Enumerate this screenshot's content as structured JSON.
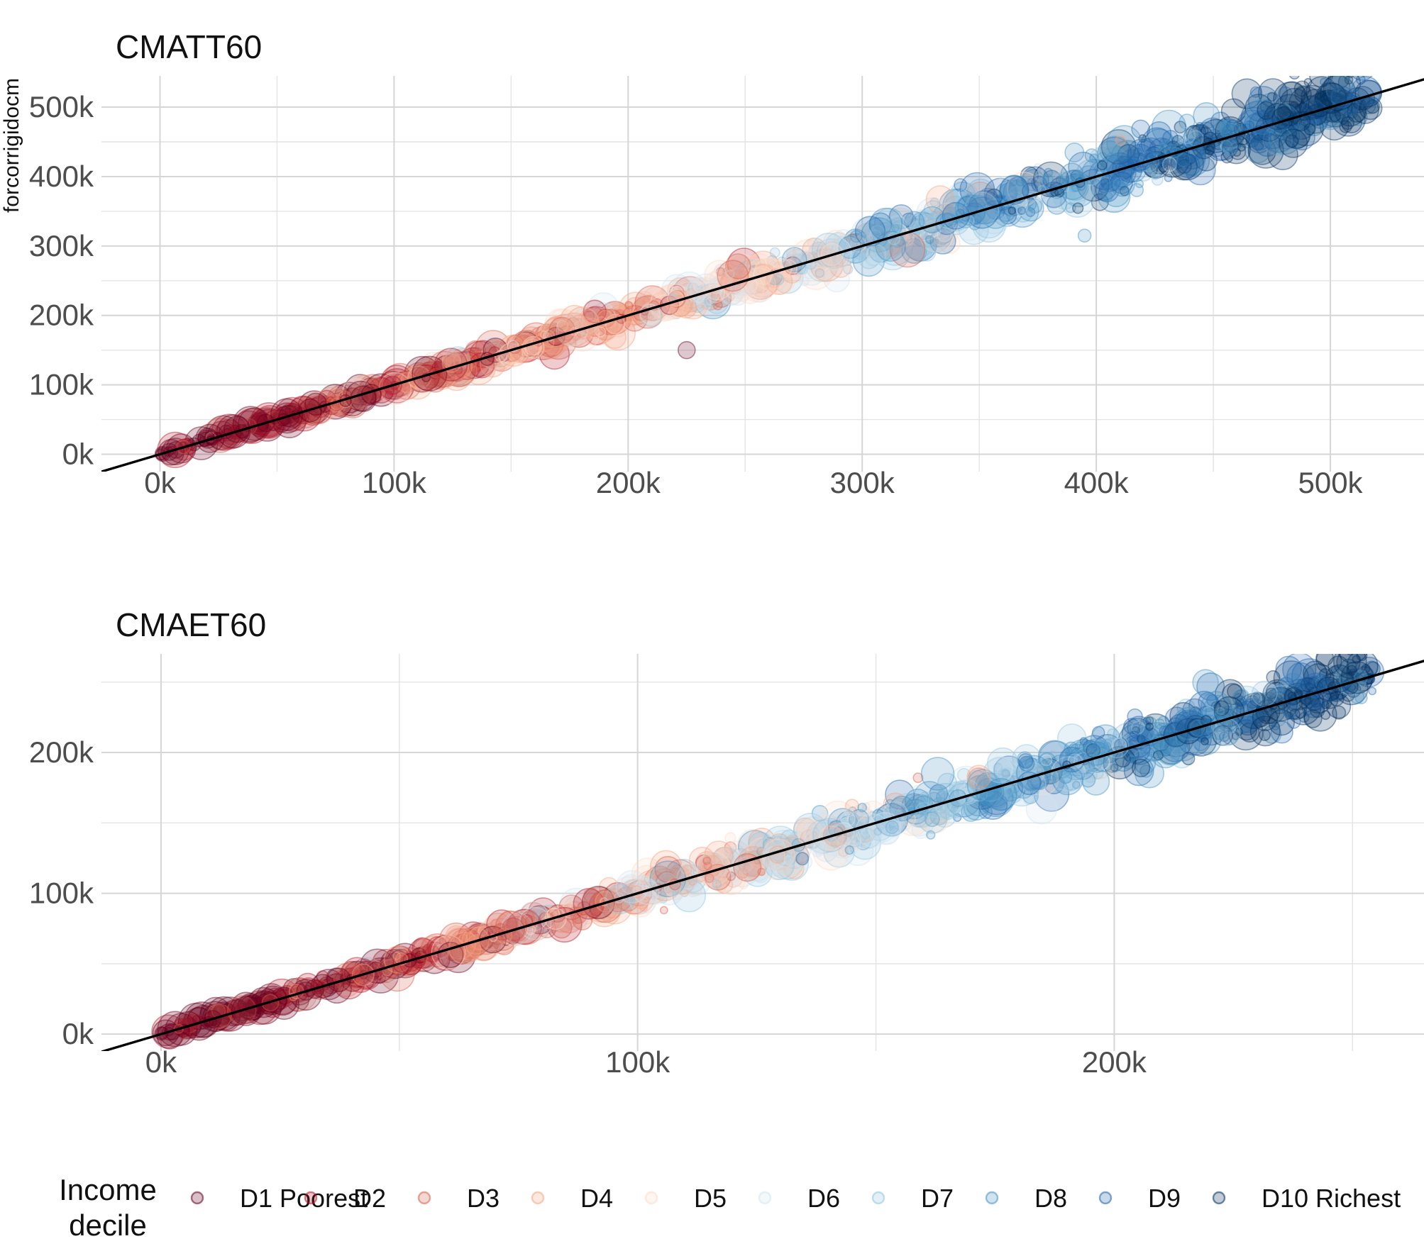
{
  "chart_data": [
    {
      "type": "scatter",
      "title": "CMATT60",
      "ylabel": "forcorrigidocm",
      "xlabel": "",
      "xlim": [
        -25000,
        540000
      ],
      "ylim": [
        -25000,
        545000
      ],
      "x_ticks": [
        0,
        100000,
        200000,
        300000,
        400000,
        500000
      ],
      "x_tick_labels": [
        "0k",
        "100k",
        "200k",
        "300k",
        "400k",
        "500k"
      ],
      "y_ticks": [
        0,
        100000,
        200000,
        300000,
        400000,
        500000
      ],
      "y_tick_labels": [
        "0k",
        "100k",
        "200k",
        "300k",
        "400k",
        "500k"
      ],
      "reference_line": {
        "type": "identity",
        "slope": 1,
        "intercept": 0
      },
      "grid": true,
      "points_note": "approx. 1200 bubbles along the identity line; colour by income decile (D1 poorest near 0 to D10 richest near the top), size varies",
      "points": [
        [
          0,
          0
        ],
        [
          20000,
          22000
        ],
        [
          45000,
          50000
        ],
        [
          80000,
          90000
        ],
        [
          100000,
          110000
        ],
        [
          130000,
          135000
        ],
        [
          160000,
          168000
        ],
        [
          200000,
          205000
        ],
        [
          230000,
          150000
        ],
        [
          240000,
          250000
        ],
        [
          300000,
          300000
        ],
        [
          350000,
          345000
        ],
        [
          380000,
          370000
        ],
        [
          395000,
          315000
        ],
        [
          420000,
          420000
        ],
        [
          450000,
          455000
        ],
        [
          490000,
          495000
        ],
        [
          510000,
          515000
        ]
      ]
    },
    {
      "type": "scatter",
      "title": "CMAET60",
      "ylabel": "",
      "xlabel": "",
      "xlim": [
        -12500,
        265000
      ],
      "ylim": [
        -12000,
        270000
      ],
      "x_ticks": [
        0,
        100000,
        200000
      ],
      "x_tick_labels": [
        "0k",
        "100k",
        "200k"
      ],
      "y_ticks": [
        0,
        100000,
        200000
      ],
      "y_tick_labels": [
        "0k",
        "100k",
        "200k"
      ],
      "reference_line": {
        "type": "identity",
        "slope": 1,
        "intercept": 0
      },
      "grid": true,
      "points_note": "approx. 1200 bubbles along the identity line; colour by income decile, size varies",
      "points": [
        [
          0,
          0
        ],
        [
          15000,
          18000
        ],
        [
          40000,
          42000
        ],
        [
          55000,
          62000
        ],
        [
          70000,
          75000
        ],
        [
          90000,
          95000
        ],
        [
          100000,
          105000
        ],
        [
          120000,
          125000
        ],
        [
          140000,
          145000
        ],
        [
          160000,
          165000
        ],
        [
          180000,
          185000
        ],
        [
          200000,
          210000
        ],
        [
          230000,
          240000
        ],
        [
          255000,
          250000
        ]
      ]
    }
  ],
  "legend": {
    "title_line1": "Income",
    "title_line2": "decile",
    "position": "bottom",
    "entries": [
      {
        "label": "D1 Poorest",
        "color": "#67001f"
      },
      {
        "label": "D2",
        "color": "#b2182b"
      },
      {
        "label": "D3",
        "color": "#d6604d"
      },
      {
        "label": "D4",
        "color": "#f4a582"
      },
      {
        "label": "D5",
        "color": "#fddbc7"
      },
      {
        "label": "D6",
        "color": "#d1e5f0"
      },
      {
        "label": "D7",
        "color": "#92c5de"
      },
      {
        "label": "D8",
        "color": "#4393c3"
      },
      {
        "label": "D9",
        "color": "#2166ac"
      },
      {
        "label": "D10 Richest",
        "color": "#053061"
      }
    ]
  }
}
